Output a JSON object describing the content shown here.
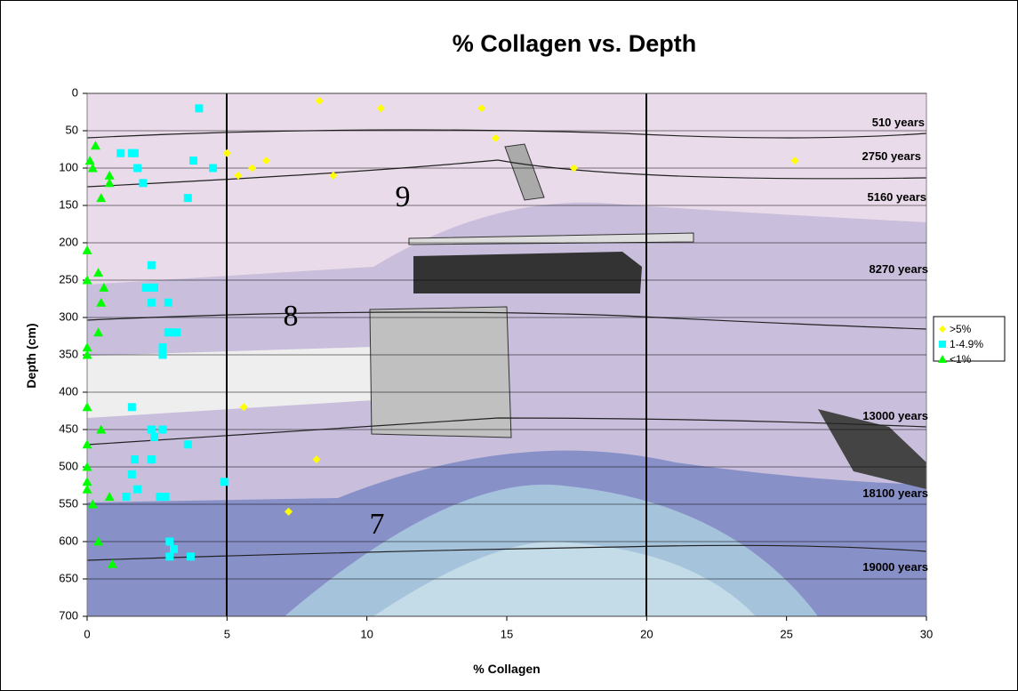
{
  "chart_data": {
    "type": "scatter",
    "title": "% Collagen vs. Depth",
    "x_label": "% Collagen",
    "y_label": "Depth (cm)",
    "xlim": [
      0,
      30
    ],
    "xticks": [
      0,
      5,
      10,
      15,
      20,
      25,
      30
    ],
    "ylim": [
      0,
      700
    ],
    "yticks": [
      0,
      50,
      100,
      150,
      200,
      250,
      300,
      350,
      400,
      450,
      500,
      550,
      600,
      650,
      700
    ],
    "y_inverted": true,
    "grid": true,
    "legend": "right",
    "series": [
      {
        "name": ">5%",
        "color": "#ffff00",
        "marker": "diamond",
        "x": [
          8.3,
          10.5,
          14.1,
          14.6,
          17.4,
          25.3,
          5.0,
          5.9,
          6.4,
          5.4,
          8.8,
          5.6,
          8.2,
          7.2
        ],
        "values": [
          10,
          20,
          20,
          60,
          100,
          90,
          80,
          100,
          90,
          110,
          110,
          420,
          490,
          560
        ]
      },
      {
        "name": "1-4.9%",
        "color": "#00ffff",
        "marker": "square",
        "x": [
          4.0,
          1.2,
          1.6,
          1.7,
          1.8,
          3.8,
          4.5,
          2.0,
          3.6,
          2.3,
          2.1,
          2.3,
          2.4,
          2.2,
          2.9,
          2.9,
          3.0,
          3.2,
          2.7,
          2.7,
          1.6,
          2.3,
          2.4,
          2.7,
          3.6,
          1.7,
          2.3,
          1.6,
          4.9,
          1.8,
          1.4,
          2.6,
          2.8,
          2.95,
          3.1,
          2.95,
          3.7
        ],
        "values": [
          20,
          80,
          80,
          80,
          100,
          90,
          100,
          120,
          140,
          230,
          260,
          280,
          260,
          260,
          280,
          320,
          320,
          320,
          340,
          350,
          420,
          450,
          460,
          450,
          470,
          490,
          490,
          510,
          520,
          530,
          540,
          540,
          540,
          600,
          610,
          620,
          620
        ]
      },
      {
        "name": "<1%",
        "color": "#00ff00",
        "marker": "triangle",
        "x": [
          0.3,
          0.1,
          0.2,
          0.8,
          0.8,
          0.5,
          0.0,
          0.0,
          0.4,
          0.6,
          0.5,
          0.4,
          0.0,
          0.0,
          0.0,
          0.5,
          0.0,
          0.0,
          0.0,
          0.0,
          0.2,
          0.8,
          0.4,
          0.9
        ],
        "values": [
          70,
          90,
          100,
          110,
          120,
          140,
          210,
          250,
          240,
          260,
          280,
          320,
          340,
          350,
          420,
          450,
          470,
          500,
          520,
          530,
          550,
          540,
          600,
          630
        ]
      }
    ],
    "annotations": [
      "9",
      "8",
      "7",
      "510 years",
      "2750 years",
      "5160 years",
      "8270 years",
      "13000 years",
      "18100 years",
      "19000 years"
    ]
  }
}
